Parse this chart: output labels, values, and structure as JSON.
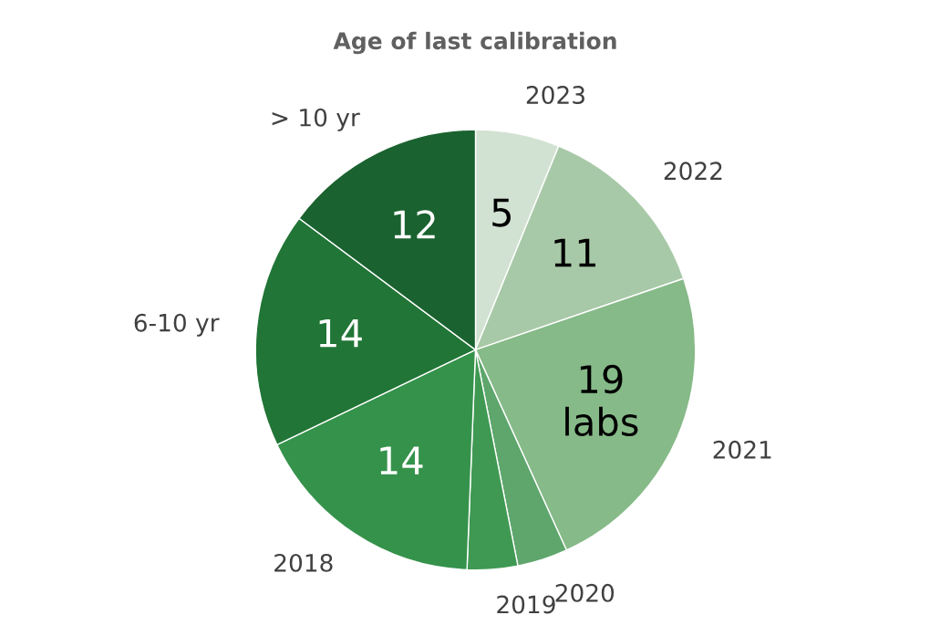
{
  "chart_data": {
    "type": "pie",
    "title": "Age of last calibration",
    "categories": [
      "2023",
      "2022",
      "2021",
      "2020",
      "2019",
      "2018",
      "6-10 yr",
      "> 10 yr"
    ],
    "values": [
      5,
      11,
      19,
      3,
      3,
      14,
      14,
      12
    ],
    "colors": [
      "#d2e2d2",
      "#a8c9a8",
      "#86ba88",
      "#5ea66c",
      "#3f9952",
      "#35924b",
      "#217536",
      "#1a622f"
    ],
    "value_labels": [
      "5",
      "11",
      "19\nlabs",
      null,
      null,
      "14",
      "14",
      "12"
    ]
  }
}
